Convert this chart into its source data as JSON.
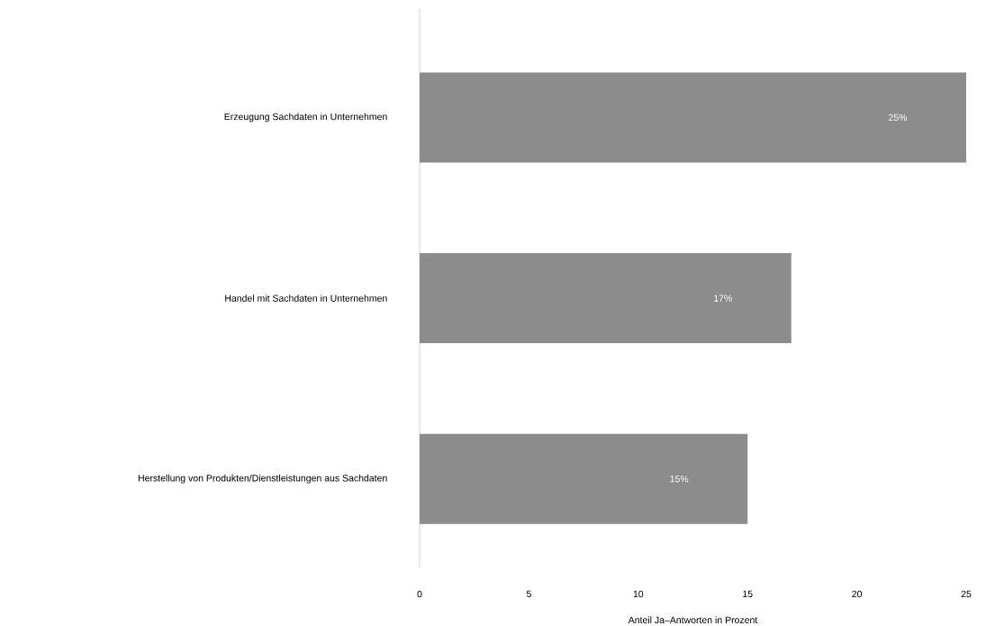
{
  "chart_data": {
    "type": "bar",
    "orientation": "horizontal",
    "categories": [
      "Erzeugung Sachdaten in Unternehmen",
      "Handel mit Sachdaten in Unternehmen",
      "Herstellung von Produkten/Dienstleistungen aus Sachdaten"
    ],
    "values": [
      25,
      17,
      15
    ],
    "value_labels": [
      "25%",
      "17%",
      "15%"
    ],
    "color": "#8c8c8c",
    "xlabel": "Anteil Ja–Antworten in Prozent",
    "xlim": [
      0,
      25
    ],
    "xticks": [
      0,
      5,
      10,
      15,
      20,
      25
    ]
  }
}
